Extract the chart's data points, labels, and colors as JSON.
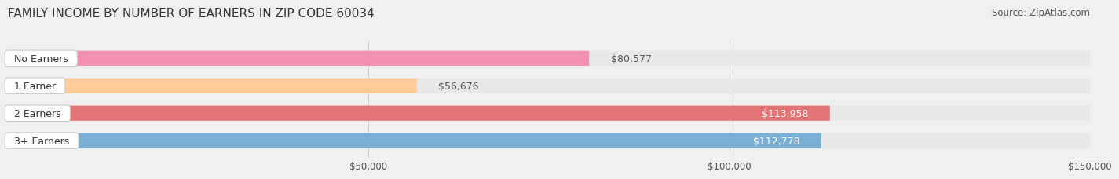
{
  "title": "FAMILY INCOME BY NUMBER OF EARNERS IN ZIP CODE 60034",
  "source": "Source: ZipAtlas.com",
  "categories": [
    "No Earners",
    "1 Earner",
    "2 Earners",
    "3+ Earners"
  ],
  "values": [
    80577,
    56676,
    113958,
    112778
  ],
  "bar_colors": [
    "#f48fb1",
    "#ffcc99",
    "#e57373",
    "#7bafd4"
  ],
  "label_colors": [
    "#555555",
    "#555555",
    "#ffffff",
    "#ffffff"
  ],
  "value_labels": [
    "$80,577",
    "$56,676",
    "$113,958",
    "$112,778"
  ],
  "xlim": [
    0,
    150000
  ],
  "xticks": [
    50000,
    100000,
    150000
  ],
  "xtick_labels": [
    "$50,000",
    "$100,000",
    "$150,000"
  ],
  "bg_color": "#f0f0f0",
  "bar_bg_color": "#e8e8e8",
  "title_fontsize": 11,
  "source_fontsize": 8.5,
  "label_fontsize": 9,
  "value_fontsize": 9,
  "bar_height": 0.55,
  "fig_width": 14.06,
  "fig_height": 2.33
}
